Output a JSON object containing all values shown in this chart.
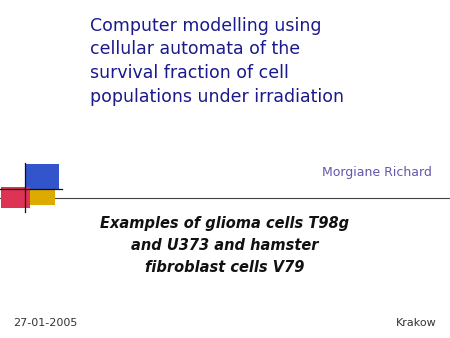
{
  "title_line1": "Computer modelling using",
  "title_line2": "cellular automata of the",
  "title_line3": "survival fraction of cell",
  "title_line4": "populations under irradiation",
  "author": "Morgiane Richard",
  "subtitle_line1": "Examples of glioma cells T98g",
  "subtitle_line2": "and U373 and hamster",
  "subtitle_line3": "fibroblast cells V79",
  "date": "27-01-2005",
  "location": "Krakow",
  "bg_color": "#ffffff",
  "title_color": "#1a1a8c",
  "author_color": "#6655aa",
  "subtitle_color": "#111111",
  "footer_color": "#333333",
  "sq_blue": "#3355cc",
  "sq_pink": "#dd3355",
  "sq_yellow": "#ddaa00",
  "sq_black": "#111111",
  "line_color": "#444444",
  "title_fontsize": 12.5,
  "author_fontsize": 9.0,
  "subtitle_fontsize": 10.5,
  "footer_fontsize": 8.0
}
